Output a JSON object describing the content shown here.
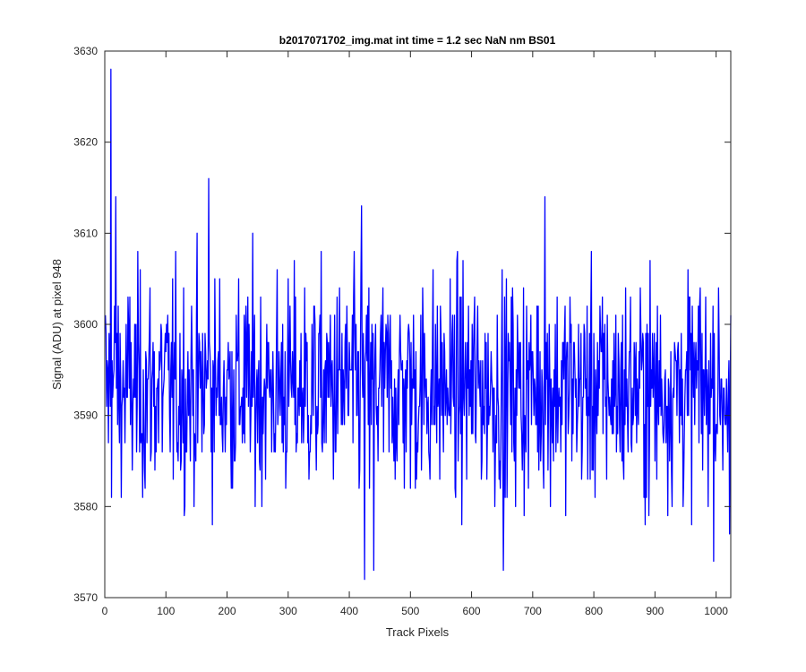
{
  "chart_data": {
    "type": "line",
    "title": "b2017071702_img.mat int time = 1.2 sec  NaN nm BS01",
    "xlabel": "Track Pixels",
    "ylabel": "Signal (ADU) at pixel 948",
    "xlim": [
      0,
      1024
    ],
    "ylim": [
      3570,
      3630
    ],
    "xticks": [
      0,
      100,
      200,
      300,
      400,
      500,
      600,
      700,
      800,
      900,
      1000
    ],
    "yticks": [
      3570,
      3580,
      3590,
      3600,
      3610,
      3620,
      3630
    ],
    "grid": false,
    "box": true,
    "series": [
      {
        "color": "#0000ff",
        "x_start": 1,
        "x_step": 1,
        "points_count": 1024,
        "mean": 3593,
        "range": [
          3572,
          3628
        ],
        "notable_points": [
          {
            "x": 10,
            "y": 3628
          },
          {
            "x": 18,
            "y": 3614
          },
          {
            "x": 170,
            "y": 3616
          },
          {
            "x": 420,
            "y": 3613
          },
          {
            "x": 425,
            "y": 3572
          },
          {
            "x": 440,
            "y": 3573
          },
          {
            "x": 652,
            "y": 3573
          },
          {
            "x": 720,
            "y": 3614
          },
          {
            "x": 1022,
            "y": 3577
          }
        ]
      }
    ]
  }
}
